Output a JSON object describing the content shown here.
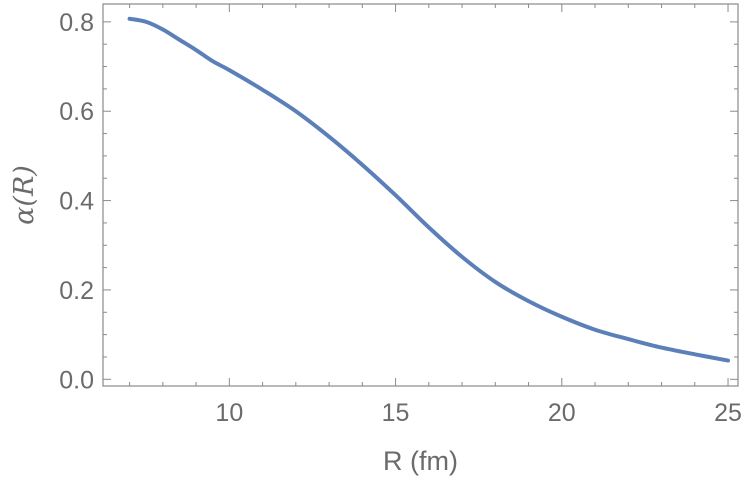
{
  "chart_data": {
    "type": "line",
    "title": "",
    "xlabel": "R (fm)",
    "ylabel": "α(R)",
    "xlim": [
      6.2,
      25.3
    ],
    "ylim": [
      -0.015,
      0.84
    ],
    "x_ticks": [
      {
        "value": 10,
        "label": "10"
      },
      {
        "value": 15,
        "label": "15"
      },
      {
        "value": 20,
        "label": "20"
      },
      {
        "value": 25,
        "label": "25"
      }
    ],
    "y_ticks": [
      {
        "value": 0.0,
        "label": "0.0"
      },
      {
        "value": 0.2,
        "label": "0.2"
      },
      {
        "value": 0.4,
        "label": "0.4"
      },
      {
        "value": 0.6,
        "label": "0.6"
      },
      {
        "value": 0.8,
        "label": "0.8"
      }
    ],
    "x_minor_step": 1,
    "y_minor_step": 0.05,
    "grid": false,
    "series": [
      {
        "color": "#5b7fb8",
        "x": [
          7.0,
          7.5,
          8.0,
          8.5,
          9.0,
          9.5,
          10.0,
          11.0,
          12.0,
          13.0,
          14.0,
          15.0,
          16.0,
          17.0,
          18.0,
          19.0,
          20.0,
          21.0,
          22.0,
          23.0,
          24.0,
          25.0
        ],
        "y": [
          0.807,
          0.8,
          0.783,
          0.76,
          0.737,
          0.712,
          0.692,
          0.648,
          0.6,
          0.543,
          0.48,
          0.412,
          0.34,
          0.274,
          0.218,
          0.175,
          0.14,
          0.111,
          0.09,
          0.071,
          0.056,
          0.042
        ]
      }
    ]
  }
}
